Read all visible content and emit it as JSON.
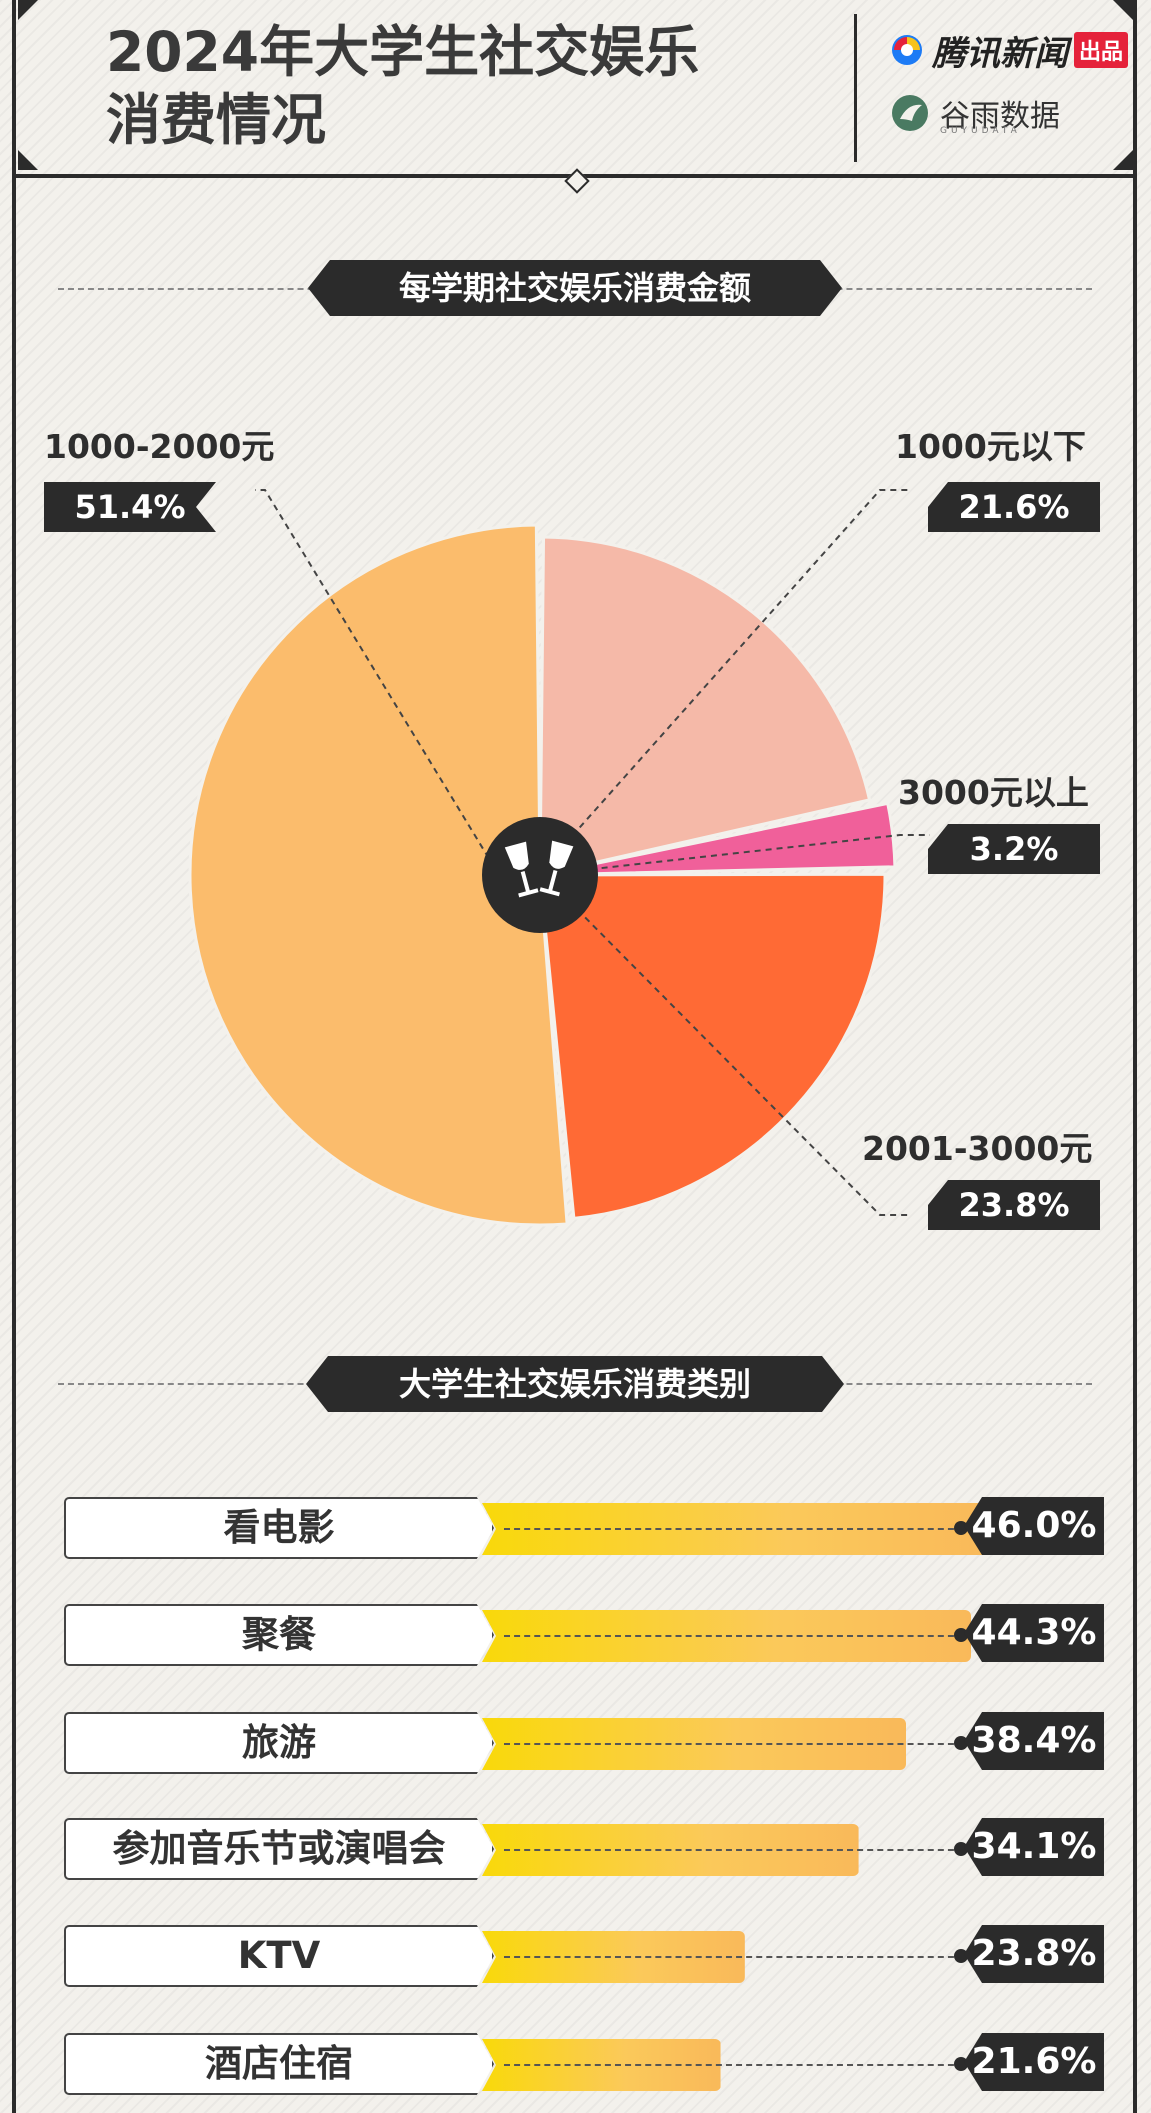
{
  "header": {
    "title_line1": "2024年大学生社交娱乐",
    "title_line2": "消费情况",
    "logo1_text": "腾讯新闻",
    "logo1_badge": "出品",
    "logo2_text": "谷雨数据",
    "logo2_sub": "GUYUDATA"
  },
  "section1": {
    "title": "每学期社交娱乐消费金额"
  },
  "section2": {
    "title": "大学生社交娱乐消费类别"
  },
  "colors": {
    "slice_1000_below": "#f5b9a8",
    "slice_3000_above": "#f0609a",
    "slice_2001_3000": "#ff6a35",
    "slice_1000_2000": "#fbbc6c",
    "dark": "#2b2b2b"
  },
  "chart_data": [
    {
      "type": "pie",
      "title": "每学期社交娱乐消费金额",
      "slices": [
        {
          "label": "1000元以下",
          "value": 21.6,
          "display": "21.6%"
        },
        {
          "label": "3000元以上",
          "value": 3.2,
          "display": "3.2%"
        },
        {
          "label": "2001-3000元",
          "value": 23.8,
          "display": "23.8%"
        },
        {
          "label": "1000-2000元",
          "value": 51.4,
          "display": "51.4%"
        }
      ],
      "center_icon": "wine-glasses-toast-icon"
    },
    {
      "type": "bar",
      "title": "大学生社交娱乐消费类别",
      "categories": [
        "看电影",
        "聚餐",
        "旅游",
        "参加音乐节或演唱会",
        "KTV",
        "酒店住宿"
      ],
      "values": [
        46.0,
        44.3,
        38.4,
        34.1,
        23.8,
        21.6
      ],
      "value_labels": [
        "46.0%",
        "44.3%",
        "38.4%",
        "34.1%",
        "23.8%",
        "21.6%"
      ]
    }
  ]
}
